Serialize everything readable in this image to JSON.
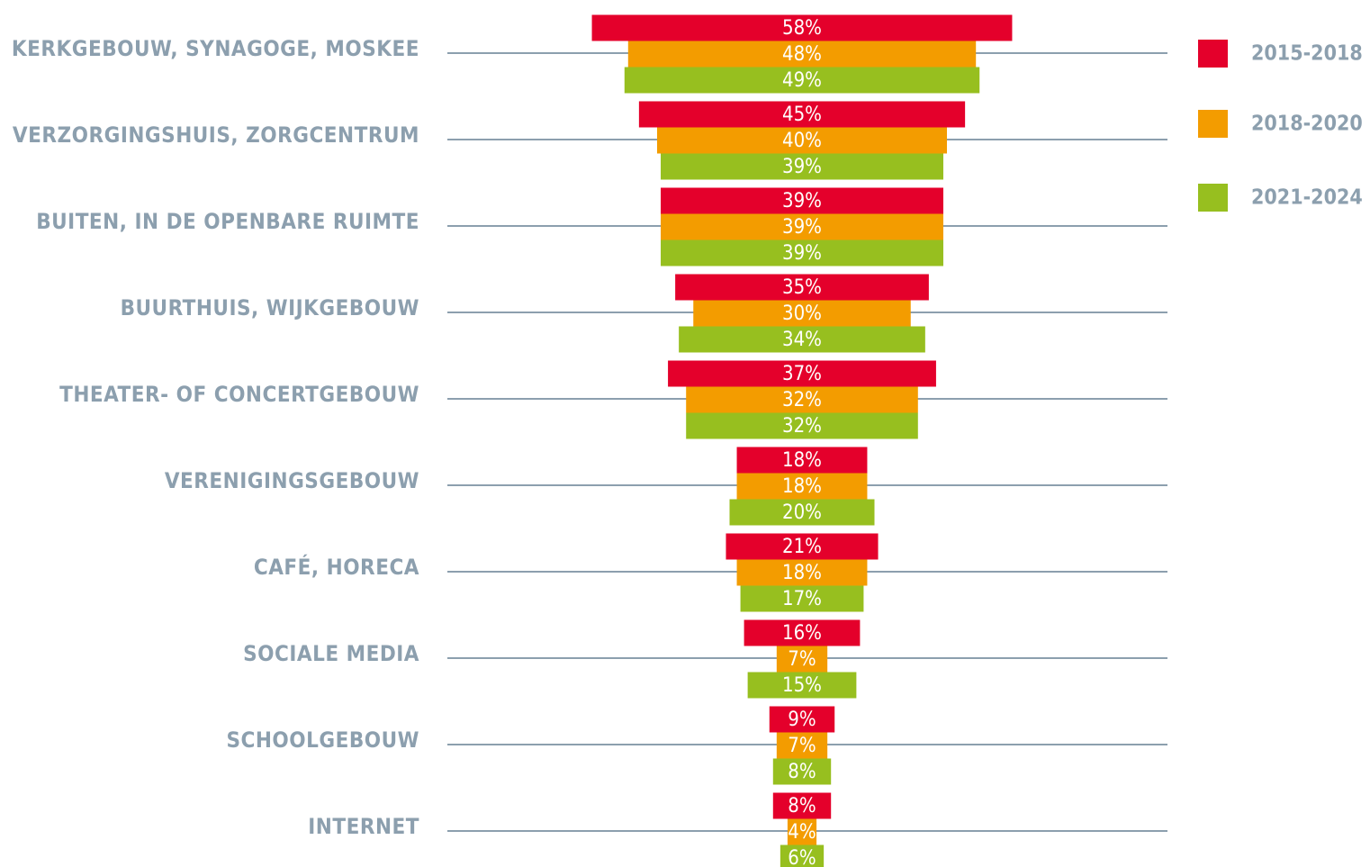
{
  "chart_data": {
    "type": "bar",
    "orientation": "centered",
    "categories": [
      "KERKGEBOUW, SYNAGOGE, MOSKEE",
      "VERZORGINGSHUIS, ZORGCENTRUM",
      "BUITEN, IN DE OPENBARE RUIMTE",
      "BUURTHUIS, WIJKGEBOUW",
      "THEATER- OF CONCERTGEBOUW",
      "VERENIGINGSGEBOUW",
      "CAFÉ, HORECA",
      "SOCIALE MEDIA",
      "SCHOOLGEBOUW",
      "INTERNET"
    ],
    "series": [
      {
        "name": "2015-2018",
        "color": "#e4002b",
        "values": [
          58,
          45,
          39,
          35,
          37,
          18,
          21,
          16,
          9,
          8
        ],
        "value_labels": [
          "58%",
          "45%",
          "39%",
          "35%",
          "37%",
          "18%",
          "21%",
          "16%",
          "9%",
          "8%"
        ]
      },
      {
        "name": "2018-2020",
        "color": "#f39c00",
        "values": [
          48,
          40,
          39,
          30,
          32,
          18,
          18,
          7,
          7,
          4
        ],
        "value_labels": [
          "48%",
          "40%",
          "39%",
          "30%",
          "32%",
          "18%",
          "18%",
          "7%",
          "7%",
          "4%"
        ]
      },
      {
        "name": "2021-2024",
        "color": "#97bf1f",
        "values": [
          49,
          39,
          39,
          34,
          32,
          20,
          17,
          15,
          8,
          6
        ],
        "value_labels": [
          "49%",
          "39%",
          "39%",
          "34%",
          "32%",
          "20%",
          "17%",
          "15%",
          "8%",
          "6%"
        ]
      }
    ],
    "legend": "top-right"
  }
}
